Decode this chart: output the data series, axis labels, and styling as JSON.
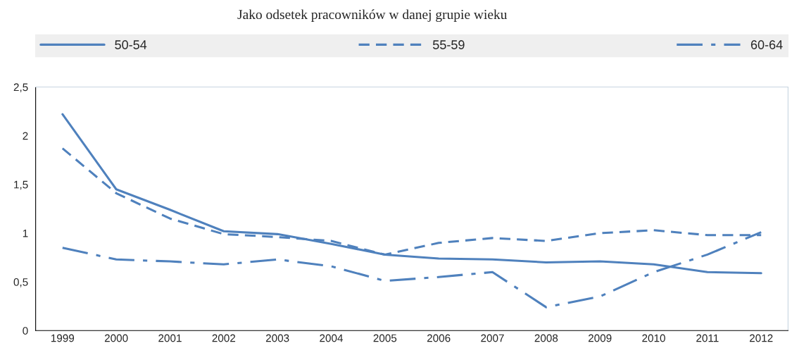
{
  "chart_data": {
    "type": "line",
    "title": "Jako odsetek pracowników w danej grupie wieku",
    "categories": [
      "1999",
      "2000",
      "2001",
      "2002",
      "2003",
      "2004",
      "2005",
      "2006",
      "2007",
      "2008",
      "2009",
      "2010",
      "2011",
      "2012"
    ],
    "series": [
      {
        "name": "50-54",
        "color": "#4f81bd",
        "line_style": "solid",
        "values": [
          2.22,
          1.45,
          1.24,
          1.02,
          0.99,
          0.89,
          0.78,
          0.74,
          0.73,
          0.7,
          0.71,
          0.68,
          0.6,
          0.59
        ]
      },
      {
        "name": "55-59",
        "color": "#4f81bd",
        "line_style": "dashed",
        "values": [
          1.87,
          1.41,
          1.15,
          0.99,
          0.96,
          0.92,
          0.78,
          0.9,
          0.95,
          0.92,
          1.0,
          1.03,
          0.98,
          0.98
        ]
      },
      {
        "name": "60-64",
        "color": "#4f81bd",
        "line_style": "dashdot",
        "values": [
          0.85,
          0.73,
          0.71,
          0.68,
          0.73,
          0.66,
          0.51,
          0.55,
          0.6,
          0.24,
          0.35,
          0.6,
          0.78,
          1.01
        ]
      }
    ],
    "ylim": [
      0,
      2.5
    ],
    "yticks": [
      0,
      {
        "value": 0.5,
        "label": "0,5"
      },
      1,
      {
        "value": 1.5,
        "label": "1,5"
      },
      2,
      {
        "value": 2.5,
        "label": "2,5"
      }
    ],
    "grid": false,
    "legend": "top",
    "marker": "none"
  }
}
